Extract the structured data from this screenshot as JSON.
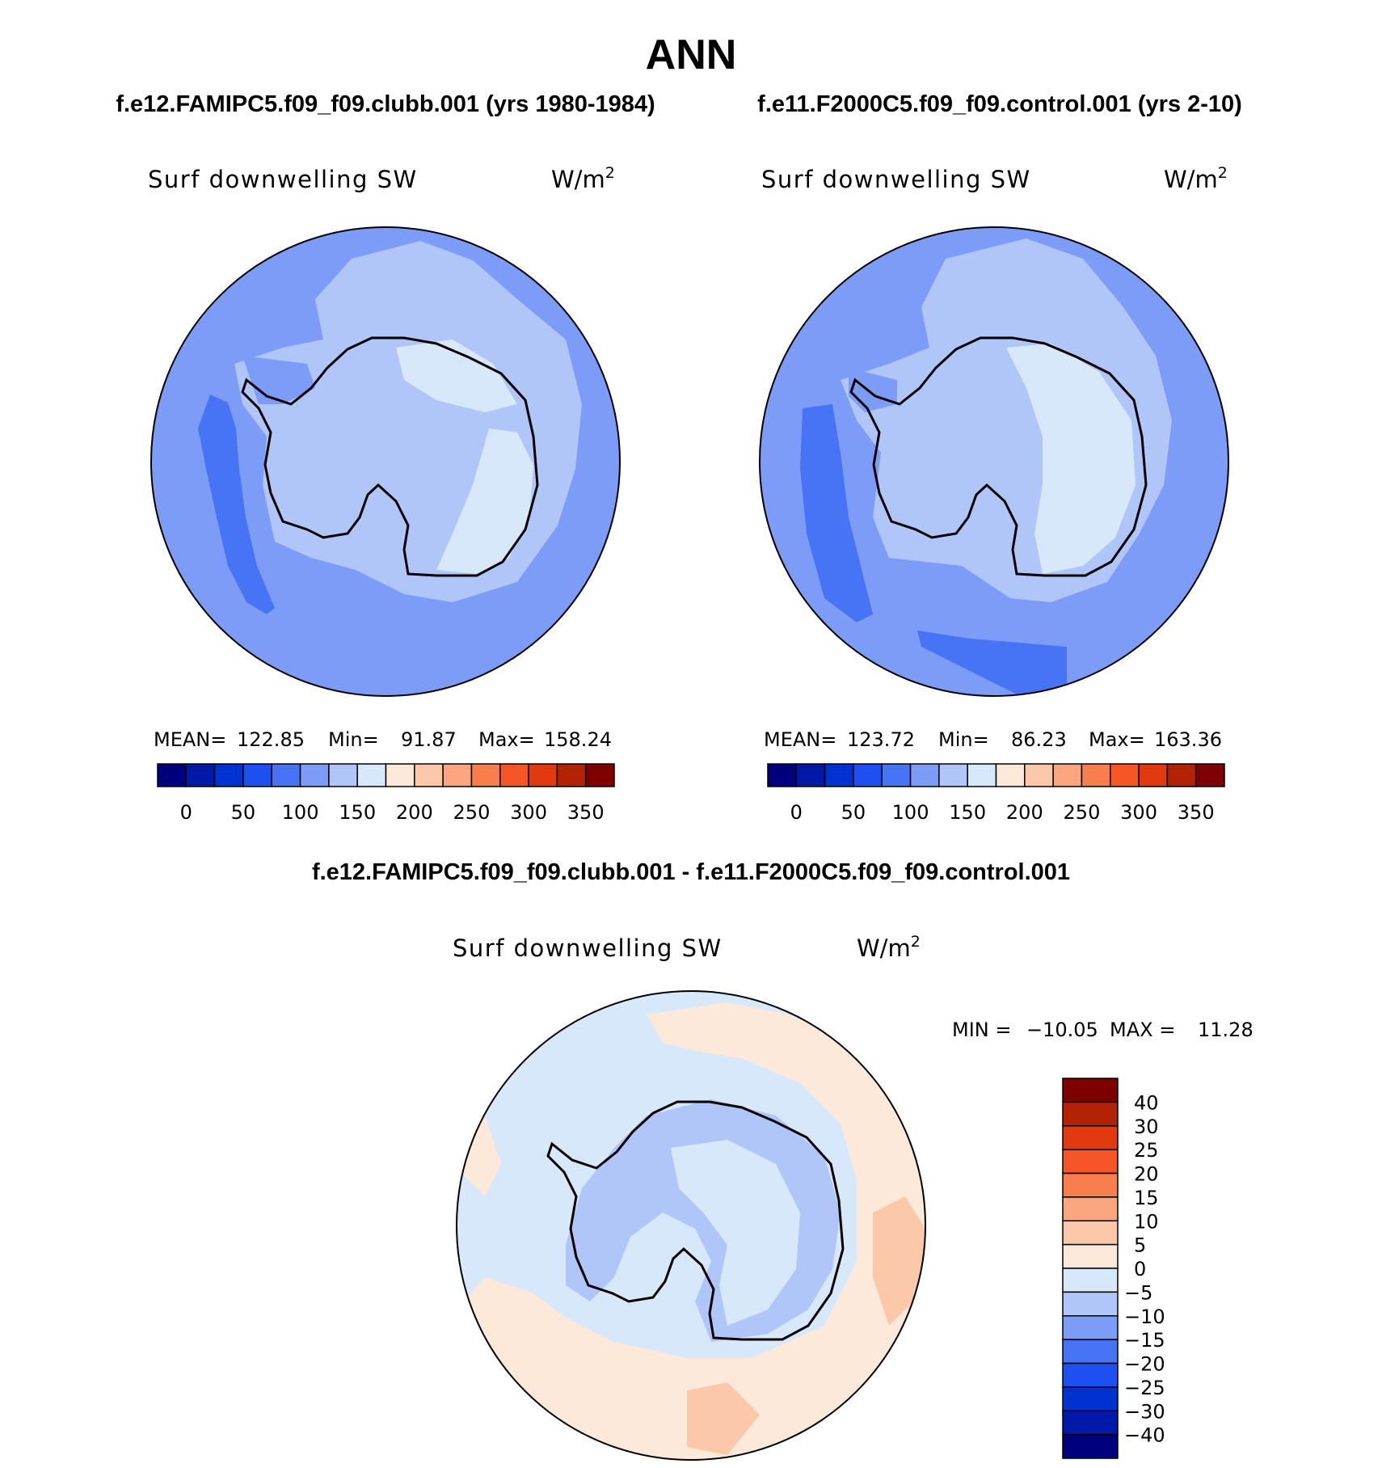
{
  "title": "ANN",
  "panels": [
    {
      "case_title": "f.e12.FAMIPC5.f09_f09.clubb.001 (yrs 1980-1984)",
      "variable": "Surf downwelling SW",
      "units_base": "W/m",
      "units_exp": "2",
      "stats": {
        "mean_label": "MEAN=",
        "mean": "122.85",
        "min_label": "Min=",
        "min": "91.87",
        "max_label": "Max=",
        "max": "158.24"
      }
    },
    {
      "case_title": "f.e11.F2000C5.f09_f09.control.001 (yrs 2-10)",
      "variable": "Surf downwelling SW",
      "units_base": "W/m",
      "units_exp": "2",
      "stats": {
        "mean_label": "MEAN=",
        "mean": "123.72",
        "min_label": "Min=",
        "min": "86.23",
        "max_label": "Max=",
        "max": "163.36"
      }
    }
  ],
  "diff_panel": {
    "case_title": "f.e12.FAMIPC5.f09_f09.clubb.001 - f.e11.F2000C5.f09_f09.control.001",
    "variable": "Surf downwelling SW",
    "units_base": "W/m",
    "units_exp": "2",
    "stats": {
      "min_label": "MIN =",
      "min": "−10.05",
      "max_label": "MAX =",
      "max": "11.28"
    }
  },
  "colorbar_mean": {
    "colors": [
      "#00007f",
      "#0019a8",
      "#0032d2",
      "#1e4ff0",
      "#4674f4",
      "#7d9cf7",
      "#b0c6f9",
      "#d8e8fb",
      "#fde9d9",
      "#fcc8aa",
      "#fba67e",
      "#f87e4e",
      "#f65627",
      "#e23a10",
      "#b32204",
      "#7f0000"
    ],
    "labels": [
      "0",
      "50",
      "100",
      "150",
      "200",
      "250",
      "300",
      "350"
    ]
  },
  "colorbar_diff": {
    "colors": [
      "#7f0000",
      "#b32204",
      "#e23a10",
      "#f65627",
      "#f87e4e",
      "#fba67e",
      "#fcc8aa",
      "#fde9d9",
      "#d8e8fb",
      "#b0c6f9",
      "#7d9cf7",
      "#4674f4",
      "#1e4ff0",
      "#0032d2",
      "#0019a8",
      "#00007f"
    ],
    "labels": [
      "40",
      "30",
      "25",
      "20",
      "15",
      "10",
      "5",
      "0",
      "−5",
      "−10",
      "−15",
      "−20",
      "−25",
      "−30",
      "−40"
    ]
  },
  "map_colors": {
    "ocean_low": "#4674f4",
    "ocean_mid": "#7d9cf7",
    "ice_mid": "#b0c6f9",
    "ice_high": "#d8e8fb",
    "diff_warm": "#fde9d9",
    "diff_warm2": "#fcc8aa",
    "diff_cool": "#d8e8fb",
    "diff_cool2": "#b0c6f9",
    "coast": "#000000"
  }
}
